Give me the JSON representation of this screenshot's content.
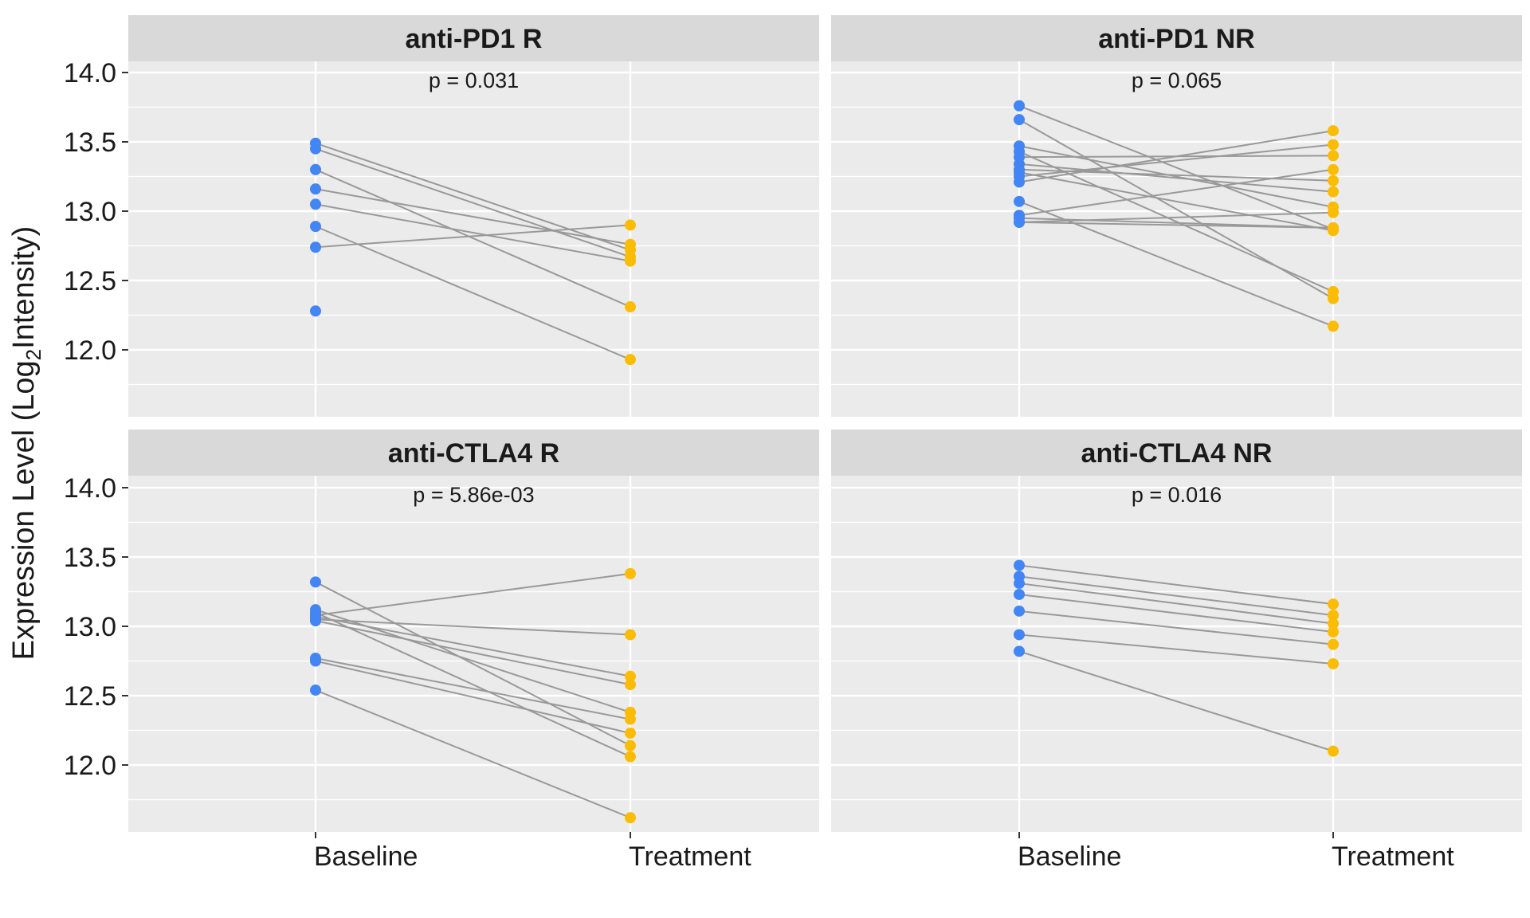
{
  "chart_data": {
    "type": "line",
    "ylabel": "Expression Level (Log₂Intensity)",
    "ylabel_parts": {
      "pre": "Expression Level (Log",
      "sub": "2",
      "post": "Intensity)"
    },
    "x_categories": [
      "Baseline",
      "Treatment"
    ],
    "y_ticks": [
      "12.0",
      "12.5",
      "13.0",
      "13.5",
      "14.0"
    ],
    "ylim": [
      11.5,
      14.25
    ],
    "colors": {
      "baseline": "#4285f4",
      "treatment": "#fbbc05",
      "line": "#999999",
      "panel_bg": "#ebebeb",
      "strip_bg": "#d9d9d9",
      "grid": "#ffffff"
    },
    "facet_layout": "2x2",
    "facets": [
      {
        "title": "anti-PD1 R",
        "p_label": "p = 0.031",
        "pairs": [
          [
            13.49,
            12.72
          ],
          [
            13.45,
            12.67
          ],
          [
            13.3,
            12.31
          ],
          [
            13.16,
            12.76
          ],
          [
            13.05,
            12.64
          ],
          [
            12.89,
            11.93
          ],
          [
            12.74,
            12.9
          ]
        ],
        "unpaired_baseline": [
          12.28
        ]
      },
      {
        "title": "anti-PD1 NR",
        "p_label": "p = 0.065",
        "pairs": [
          [
            13.76,
            12.87
          ],
          [
            13.66,
            12.37
          ],
          [
            13.47,
            13.03
          ],
          [
            13.43,
            12.42
          ],
          [
            13.39,
            13.4
          ],
          [
            13.34,
            13.14
          ],
          [
            13.3,
            13.22
          ],
          [
            13.28,
            12.86
          ],
          [
            13.25,
            13.48
          ],
          [
            13.21,
            13.58
          ],
          [
            13.07,
            12.17
          ],
          [
            12.97,
            13.3
          ],
          [
            12.95,
            12.88
          ],
          [
            12.92,
            12.99
          ],
          [
            12.92,
            12.88
          ]
        ],
        "unpaired_baseline": []
      },
      {
        "title": "anti-CTLA4 R",
        "p_label": "p = 5.86e-03",
        "pairs": [
          [
            13.32,
            12.14
          ],
          [
            13.12,
            12.38
          ],
          [
            13.1,
            12.06
          ],
          [
            13.08,
            13.38
          ],
          [
            13.05,
            12.94
          ],
          [
            13.04,
            12.58
          ],
          [
            12.77,
            12.33
          ],
          [
            12.75,
            12.23
          ],
          [
            12.54,
            11.62
          ],
          [
            13.07,
            12.64
          ]
        ],
        "unpaired_baseline": []
      },
      {
        "title": "anti-CTLA4 NR",
        "p_label": "p = 0.016",
        "pairs": [
          [
            13.44,
            13.16
          ],
          [
            13.36,
            13.08
          ],
          [
            13.31,
            13.02
          ],
          [
            13.23,
            12.96
          ],
          [
            13.11,
            12.87
          ],
          [
            12.94,
            12.73
          ],
          [
            12.82,
            12.1
          ]
        ],
        "unpaired_baseline": []
      }
    ]
  }
}
